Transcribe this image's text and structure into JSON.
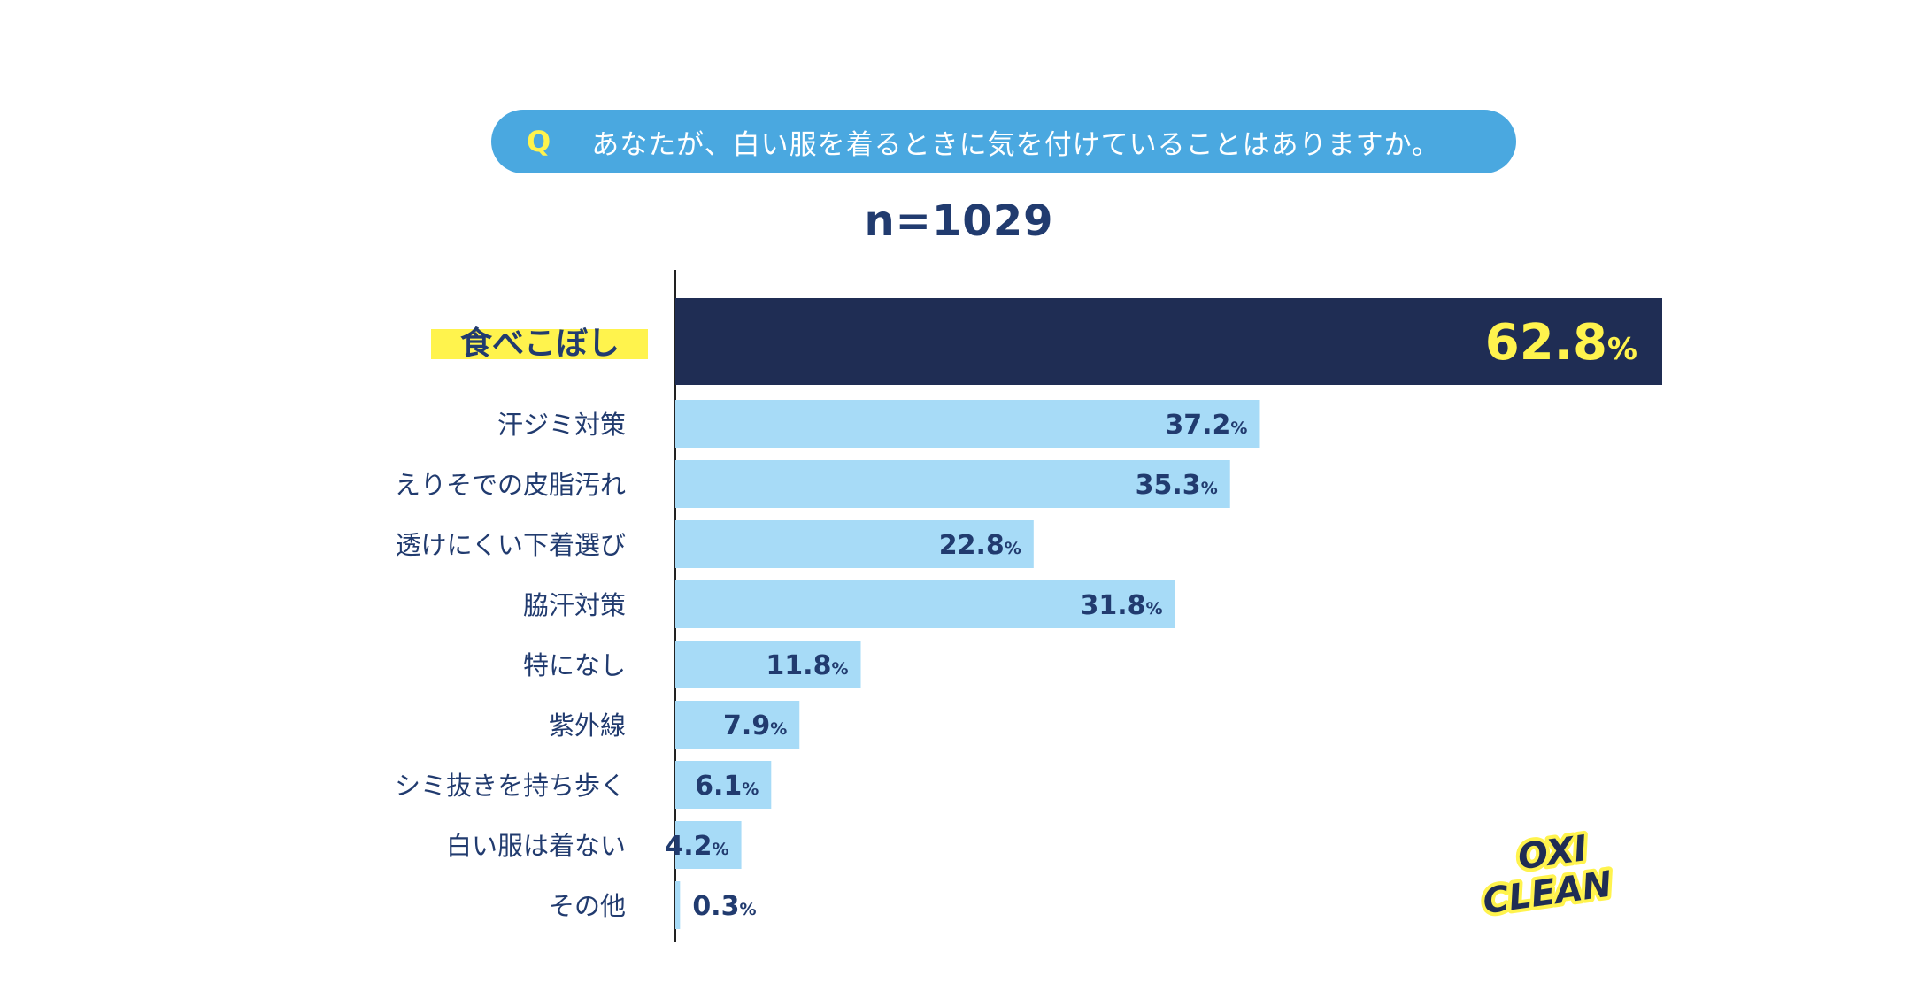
{
  "question": {
    "prefix": "Q",
    "text": "あなたが、白い服を着るときに気を付けていることはありますか。"
  },
  "sample_size": "n=1029",
  "chart_data": {
    "type": "bar",
    "orientation": "horizontal",
    "categories": [
      "食べこぼし",
      "汗ジミ対策",
      "えりそでの皮脂汚れ",
      "透けにくい下着選び",
      "脇汗対策",
      "特になし",
      "紫外線",
      "シミ抜きを持ち歩く",
      "白い服は着ない",
      "その他"
    ],
    "values": [
      62.8,
      37.2,
      35.3,
      22.8,
      31.8,
      11.8,
      7.9,
      6.1,
      4.2,
      0.3
    ],
    "unit": "%",
    "highlight_index": 0,
    "colors": {
      "highlight_bar": "#1f2d54",
      "bar": "#a7dbf7",
      "highlight_label_bg": "#fff34d",
      "highlight_value": "#fff34d",
      "label": "#213b6f",
      "axis": "#222222"
    }
  },
  "logo": {
    "line1": "OXI",
    "line2": "CLEAN"
  }
}
